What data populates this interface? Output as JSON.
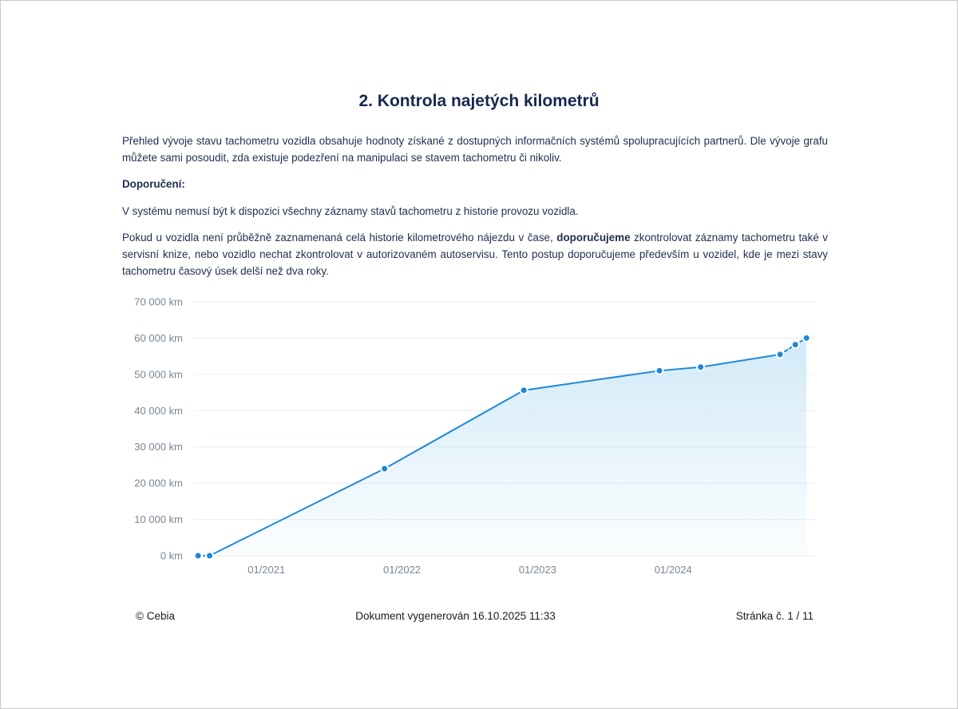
{
  "title": "2. Kontrola najetých kilometrů",
  "intro": "Přehled vývoje stavu tachometru vozidla obsahuje hodnoty získané z dostupných informačních systémů spolupracujících partnerů. Dle vývoje grafu můžete sami posoudit, zda existuje podezření na manipulaci se stavem tachometru či nikoliv.",
  "recommendation_heading": "Doporučení:",
  "note": "V systému nemusí být k dispozici všechny záznamy stavů tachometru z historie provozu vozidla.",
  "advice": {
    "part1": "Pokud u vozidla není průběžně zaznamenaná celá historie kilometrového nájezdu v čase, ",
    "bold": "doporučujeme",
    "part2": " zkontrolovat záznamy tachometru také v servisní knize, nebo vozidlo nechat zkontrolovat v autorizovaném autoservisu. Tento postup doporučujeme především u vozidel, kde je mezi stavy tachometru časový úsek delší než dva roky."
  },
  "chart_data": {
    "type": "area",
    "x_axis_ticks": [
      "01/2021",
      "01/2022",
      "01/2023",
      "01/2024"
    ],
    "y_axis_ticks": [
      "0 km",
      "10 000 km",
      "20 000 km",
      "30 000 km",
      "40 000 km",
      "50 000 km",
      "60 000 km",
      "70 000 km"
    ],
    "ylim": [
      0,
      70000
    ],
    "xlim": [
      "2020-06-20",
      "2025-01-15"
    ],
    "points": [
      {
        "date": "2020-07-01",
        "km": 0
      },
      {
        "date": "2020-08-01",
        "km": 0
      },
      {
        "date": "2021-11-15",
        "km": 24000
      },
      {
        "date": "2022-11-25",
        "km": 45600
      },
      {
        "date": "2023-11-25",
        "km": 51000
      },
      {
        "date": "2024-03-15",
        "km": 52000
      },
      {
        "date": "2024-10-15",
        "km": 55500
      },
      {
        "date": "2024-11-25",
        "km": 58200
      },
      {
        "date": "2024-12-25",
        "km": 60000
      }
    ],
    "dashed_segments": [
      [
        0,
        1
      ],
      [
        6,
        7
      ],
      [
        7,
        8
      ]
    ],
    "grid": true,
    "line_color": "#1e88d8",
    "fill_color": "#cfe9f7"
  },
  "footer": {
    "left": "© Cebia",
    "center": "Dokument vygenerován 16.10.2025 11:33",
    "right": "Stránka č. 1 / 11"
  }
}
